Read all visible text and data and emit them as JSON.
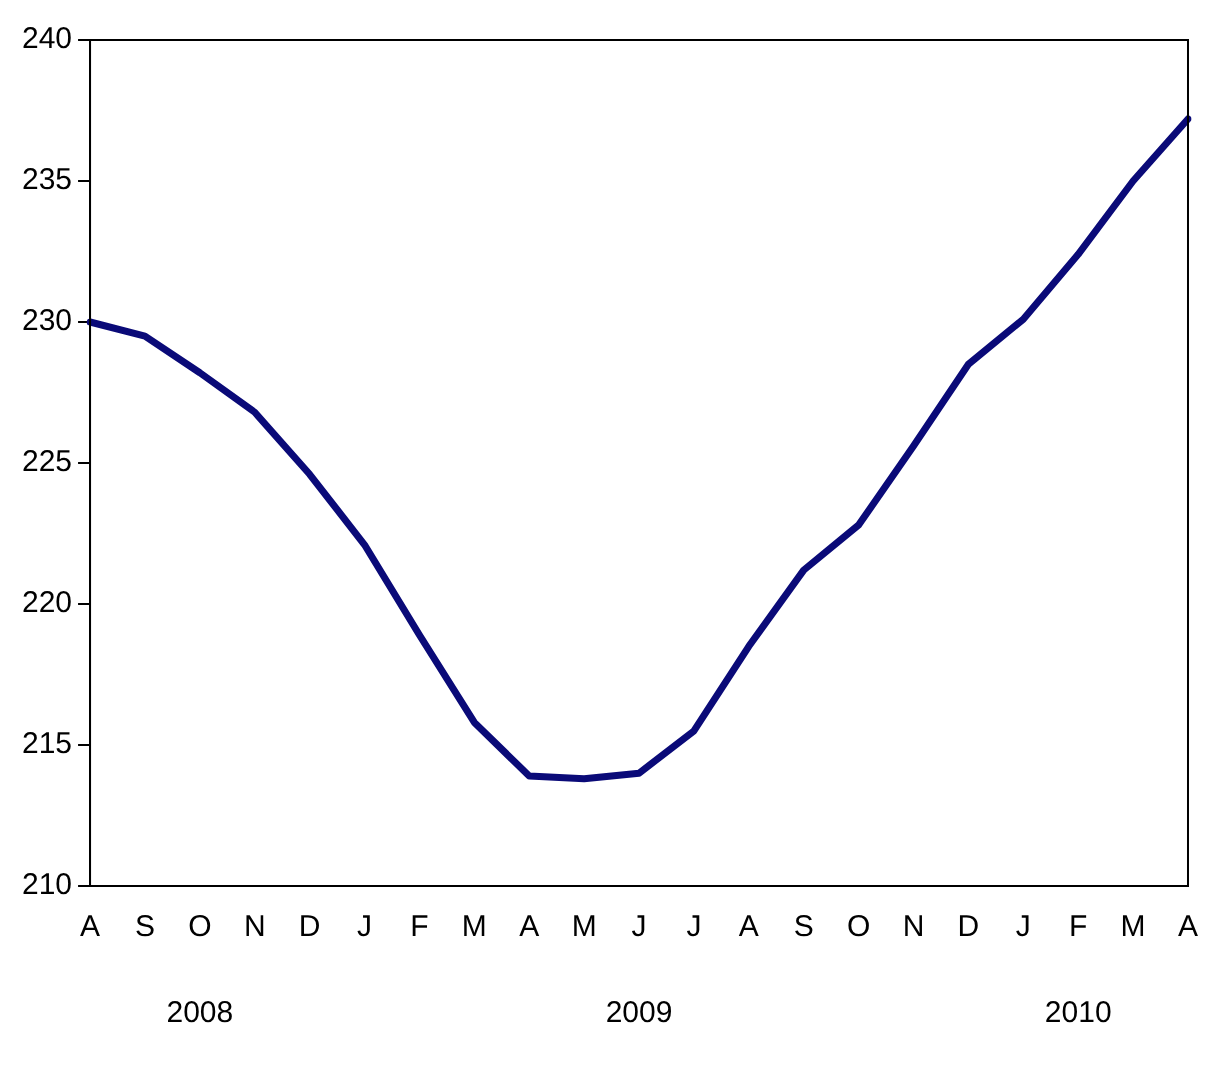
{
  "chart_data": {
    "type": "line",
    "categories": [
      "A",
      "S",
      "O",
      "N",
      "D",
      "J",
      "F",
      "M",
      "A",
      "M",
      "J",
      "J",
      "A",
      "S",
      "O",
      "N",
      "D",
      "J",
      "F",
      "M",
      "A"
    ],
    "series": [
      {
        "color": "#0a0a78",
        "values": [
          230.0,
          229.5,
          228.2,
          226.8,
          224.6,
          222.1,
          218.9,
          215.8,
          213.9,
          213.8,
          214.0,
          215.5,
          218.5,
          221.2,
          222.8,
          225.6,
          228.5,
          230.1,
          232.4,
          235.0,
          237.2
        ]
      }
    ],
    "ylim": [
      210,
      240
    ],
    "yticks": [
      210,
      215,
      220,
      225,
      230,
      235,
      240
    ],
    "grid": false,
    "legend": false,
    "marker": "none",
    "line_style": "solid",
    "annotations": [
      "2008",
      "2009",
      "2010"
    ]
  }
}
